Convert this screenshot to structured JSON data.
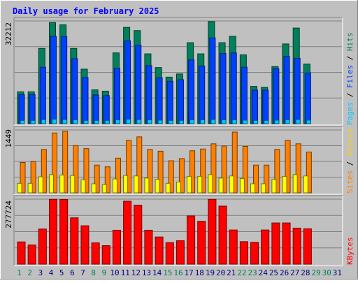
{
  "title": "Daily usage for February 2025",
  "colors": {
    "background": "#c0c0c0",
    "plot": "#c0c0c0",
    "title": "#0000ff",
    "hits": "#00805c",
    "files": "#0040ff",
    "pages": "#00c8ff",
    "visits": "#ffff00",
    "sites": "#ff8000",
    "kbytes": "#ff0000",
    "weekend_label": "#00805c",
    "weekday_label": "#000080"
  },
  "axis_labels": {
    "top": {
      "max": "32212",
      "pages": "Pages",
      "files": "Files",
      "hits": "Hits",
      "sep": " / "
    },
    "mid": {
      "max": "1449",
      "sites": "Sites",
      "visits": "Visits",
      "sep": " / "
    },
    "bottom": {
      "max": "277724",
      "kbytes": "KBytes"
    }
  },
  "chart_data": {
    "type": "bar",
    "title": "Daily usage for February 2025",
    "categories": [
      "1",
      "2",
      "3",
      "4",
      "5",
      "6",
      "7",
      "8",
      "9",
      "10",
      "11",
      "12",
      "13",
      "14",
      "15",
      "16",
      "17",
      "18",
      "19",
      "20",
      "21",
      "22",
      "23",
      "24",
      "25",
      "26",
      "27",
      "28",
      "29",
      "30",
      "31"
    ],
    "weekend_days": [
      "1",
      "2",
      "8",
      "9",
      "15",
      "16",
      "22",
      "23",
      "29",
      "30"
    ],
    "panels": [
      {
        "name": "top",
        "ymax": 32212,
        "series": [
          {
            "name": "Hits",
            "values": [
              10000,
              10000,
              23600,
              31700,
              31000,
              23600,
              17100,
              10600,
              10200,
              22200,
              30200,
              29200,
              21900,
              17600,
              14600,
              15600,
              25400,
              21900,
              32000,
              25400,
              27400,
              21600,
              11700,
              11400,
              17900,
              25000,
              30000,
              18700,
              0,
              0,
              0
            ]
          },
          {
            "name": "Files",
            "values": [
              9100,
              9100,
              17700,
              27400,
              27300,
              20400,
              14500,
              9000,
              8800,
              17400,
              26000,
              24600,
              18200,
              14400,
              13300,
              13800,
              20000,
              18100,
              26900,
              22000,
              22200,
              17700,
              10500,
              10500,
              17200,
              21100,
              20500,
              15900,
              0,
              0,
              0
            ]
          },
          {
            "name": "Pages",
            "values": [
              1000,
              1000,
              1300,
              1400,
              1300,
              1200,
              1000,
              1000,
              1000,
              1200,
              1400,
              1300,
              1200,
              1100,
              1000,
              1000,
              1200,
              1200,
              1300,
              1200,
              1200,
              1100,
              1000,
              1000,
              1100,
              1200,
              1300,
              1100,
              0,
              0,
              0
            ]
          }
        ]
      },
      {
        "name": "mid",
        "ymax": 1449,
        "series": [
          {
            "name": "Sites",
            "values": [
              700,
              720,
              1000,
              1380,
              1420,
              1090,
              1020,
              640,
              600,
              800,
              1210,
              1290,
              1000,
              960,
              740,
              790,
              970,
              1010,
              1130,
              1080,
              1400,
              1070,
              640,
              640,
              1000,
              1210,
              1130,
              940,
              0,
              0,
              0
            ]
          },
          {
            "name": "Visits",
            "values": [
              220,
              220,
              370,
              420,
              410,
              400,
              300,
              210,
              190,
              320,
              400,
              390,
              340,
              310,
              220,
              250,
              380,
              380,
              420,
              340,
              390,
              330,
              210,
              210,
              310,
              380,
              420,
              390,
              0,
              0,
              0
            ]
          }
        ]
      },
      {
        "name": "bottom",
        "ymax": 277724,
        "series": [
          {
            "name": "KBytes",
            "values": [
              95000,
              82000,
              150000,
              277000,
              276000,
              198000,
              164000,
              91000,
              79000,
              145000,
              269000,
              252000,
              145000,
              116000,
              92000,
              100000,
              206000,
              183000,
              277000,
              248000,
              146000,
              96000,
              93000,
              146000,
              176000,
              176000,
              154000,
              151000,
              0,
              0,
              0
            ]
          }
        ]
      }
    ]
  }
}
